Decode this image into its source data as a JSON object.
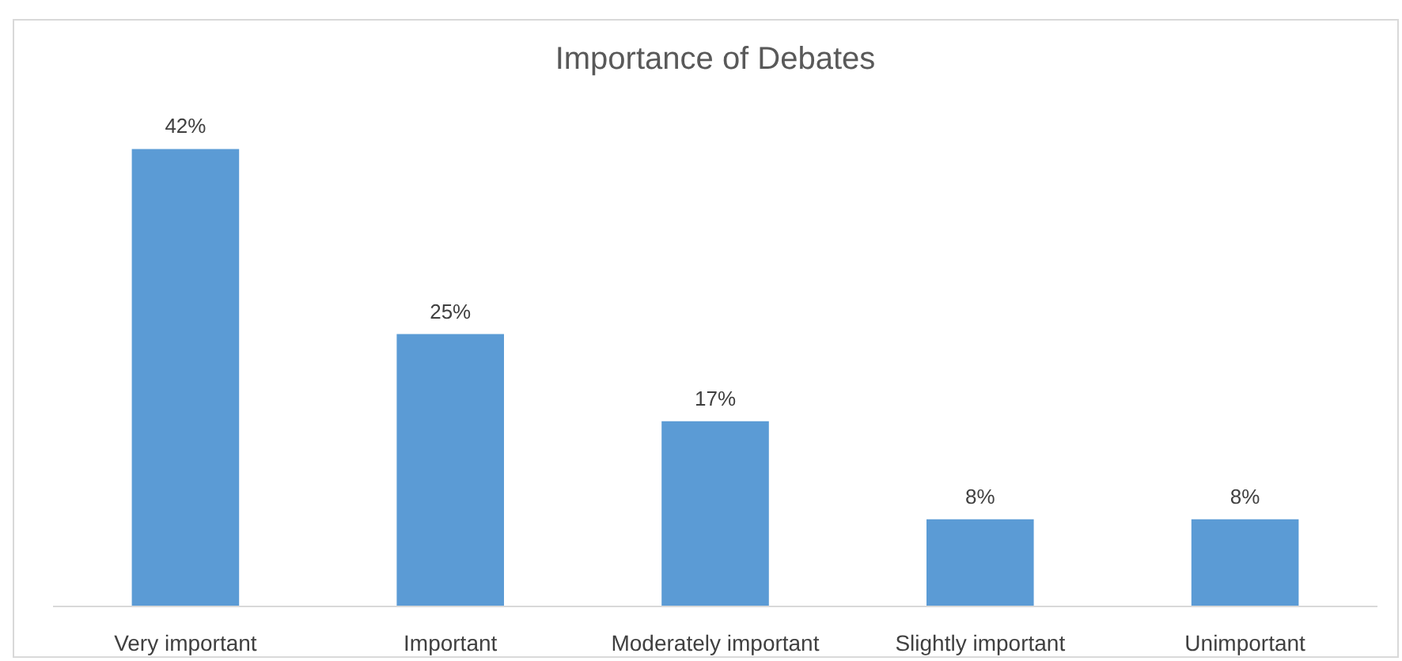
{
  "chart_data": {
    "type": "bar",
    "title": "Importance of Debates",
    "categories": [
      "Very important",
      "Important",
      "Moderately important",
      "Slightly important",
      "Unimportant"
    ],
    "values": [
      42,
      25,
      17,
      8,
      8
    ],
    "color": "#5b9bd5",
    "value_labels": [
      "42%",
      "25%",
      "17%",
      "8%",
      "8%"
    ]
  }
}
